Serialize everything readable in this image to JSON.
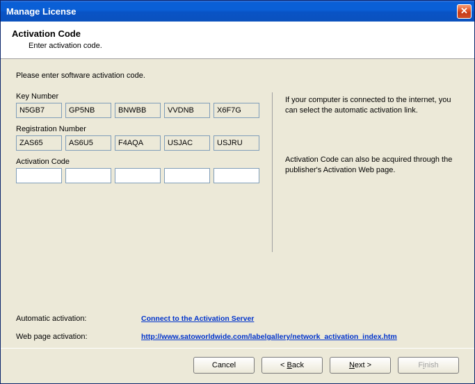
{
  "window": {
    "title": "Manage License"
  },
  "header": {
    "title": "Activation Code",
    "subtitle": "Enter activation code."
  },
  "instruction": "Please enter software activation code.",
  "labels": {
    "key_number": "Key Number",
    "registration_number": "Registration Number",
    "activation_code": "Activation Code"
  },
  "key_number": [
    "N5GB7",
    "GP5NB",
    "BNWBB",
    "VVDNB",
    "X6F7G"
  ],
  "registration_number": [
    "ZAS65",
    "AS6U5",
    "F4AQA",
    "USJAC",
    "USJRU"
  ],
  "activation_code": [
    "",
    "",
    "",
    "",
    ""
  ],
  "sidebar": {
    "paragraph1": "If your computer is connected to the internet, you can select the automatic activation link.",
    "paragraph2": "Activation Code can also be acquired through the publisher's Activation Web page."
  },
  "links": {
    "automatic_label": "Automatic activation:",
    "automatic_text": "Connect to the Activation Server",
    "webpage_label": "Web page activation:",
    "webpage_text": "http://www.satoworldwide.com/labelgallery/network_activation_index.htm"
  },
  "buttons": {
    "cancel": "Cancel",
    "back": "Back",
    "next": "Next",
    "finish": "Finish"
  },
  "colors": {
    "titlebar_start": "#0a5fd6",
    "content_bg": "#ece9d8",
    "link_color": "#0033cc",
    "border_color": "#7f9db9"
  }
}
